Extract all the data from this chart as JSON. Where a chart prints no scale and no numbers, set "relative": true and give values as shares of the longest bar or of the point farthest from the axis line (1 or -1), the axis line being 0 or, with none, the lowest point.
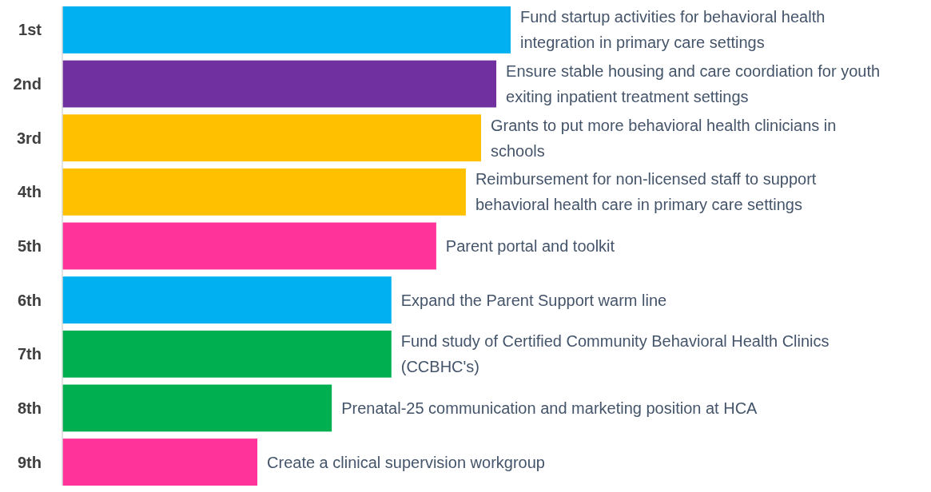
{
  "chart_data": {
    "type": "bar",
    "orientation": "horizontal",
    "relative": true,
    "categories": [
      "1st",
      "2nd",
      "3rd",
      "4th",
      "5th",
      "6th",
      "7th",
      "8th",
      "9th"
    ],
    "values": [
      1,
      0.968,
      0.934,
      0.9,
      0.834,
      0.734,
      0.734,
      0.601,
      0.435
    ],
    "colors": [
      "#00b0f0",
      "#7030a0",
      "#ffc000",
      "#ffc000",
      "#ff3399",
      "#00b0f0",
      "#00b050",
      "#00b050",
      "#ff3399"
    ],
    "annotations": [
      {
        "text": "Fund startup activities for behavioral health integration in primary care settings",
        "x": 1,
        "y": "1st"
      },
      {
        "text": "Ensure stable housing and care coordiation for youth exiting inpatient treatment settings",
        "x": 0.968,
        "y": "2nd"
      },
      {
        "text": "Grants to put more behavioral health clinicians in schools",
        "x": 0.934,
        "y": "3rd"
      },
      {
        "text": "Reimbursement for non-licensed staff to support behavioral health care in primary care settings",
        "x": 0.9,
        "y": "4th"
      },
      {
        "text": "Parent portal and toolkit",
        "x": 0.834,
        "y": "5th"
      },
      {
        "text": "Expand the Parent Support warm line",
        "x": 0.734,
        "y": "6th"
      },
      {
        "text": "Fund study of Certified Community Behavioral Health Clinics (CCBHC's)",
        "x": 0.734,
        "y": "7th"
      },
      {
        "text": "Prenatal-25 communication and marketing position at HCA",
        "x": 0.601,
        "y": "8th"
      },
      {
        "text": "Create a clinical supervision workgroup",
        "x": 0.435,
        "y": "9th"
      }
    ]
  }
}
